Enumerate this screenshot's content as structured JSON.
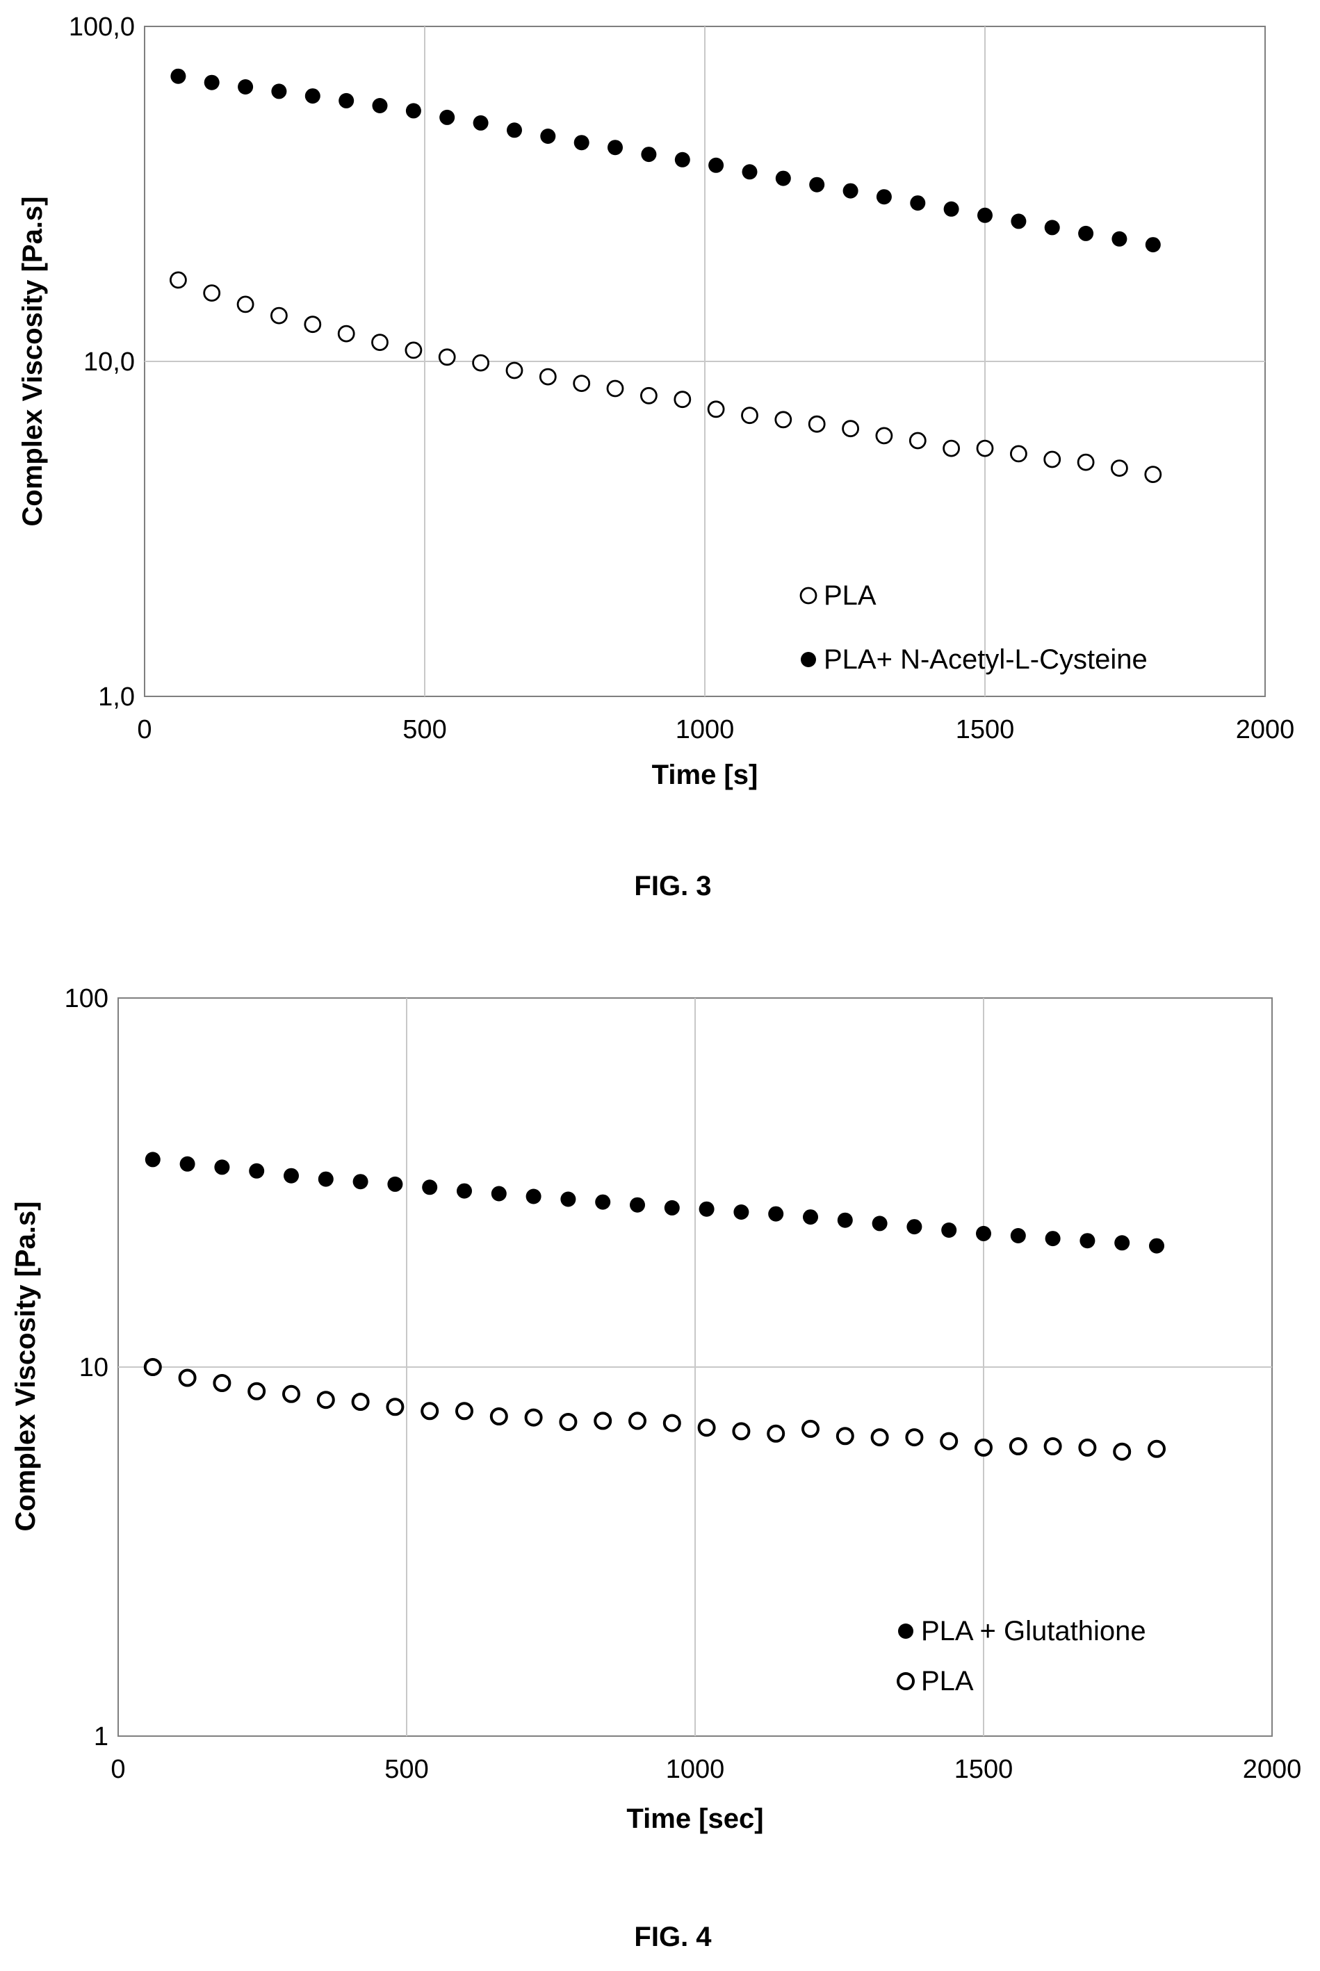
{
  "figures": [
    {
      "caption": "FIG. 3"
    },
    {
      "caption": "FIG. 4"
    }
  ],
  "chart_data": [
    {
      "type": "scatter",
      "title": "",
      "xlabel": "Time [s]",
      "ylabel": "Complex Viscosity [Pa.s]",
      "xlim": [
        0,
        2000
      ],
      "ylim": [
        1,
        100
      ],
      "yscale": "log",
      "x_ticks": [
        0,
        500,
        1000,
        1500,
        2000
      ],
      "x_tick_labels": [
        "0",
        "500",
        "1000",
        "1500",
        "2000"
      ],
      "y_ticks": [
        1,
        10,
        100
      ],
      "y_tick_labels": [
        "1,0",
        "10,0",
        "100,0"
      ],
      "grid": true,
      "legend_position": "bottom-right",
      "series": [
        {
          "name": "PLA",
          "marker": "open-circle",
          "x": [
            60,
            120,
            180,
            240,
            300,
            360,
            420,
            480,
            540,
            600,
            660,
            720,
            780,
            840,
            900,
            960,
            1020,
            1080,
            1140,
            1200,
            1260,
            1320,
            1380,
            1440,
            1500,
            1560,
            1620,
            1680,
            1740,
            1800
          ],
          "values": [
            17.5,
            16.0,
            14.8,
            13.7,
            12.9,
            12.1,
            11.4,
            10.8,
            10.3,
            9.9,
            9.4,
            9.0,
            8.6,
            8.3,
            7.9,
            7.7,
            7.2,
            6.9,
            6.7,
            6.5,
            6.3,
            6.0,
            5.8,
            5.5,
            5.5,
            5.3,
            5.1,
            5.0,
            4.8,
            4.6
          ]
        },
        {
          "name": "PLA+ N-Acetyl-L-Cysteine",
          "marker": "filled-circle",
          "x": [
            60,
            120,
            180,
            240,
            300,
            360,
            420,
            480,
            540,
            600,
            660,
            720,
            780,
            840,
            900,
            960,
            1020,
            1080,
            1140,
            1200,
            1260,
            1320,
            1380,
            1440,
            1500,
            1560,
            1620,
            1680,
            1740,
            1800
          ],
          "values": [
            71.0,
            68.0,
            66.0,
            64.0,
            62.0,
            60.0,
            58.0,
            56.0,
            53.5,
            51.5,
            49.0,
            47.0,
            45.0,
            43.5,
            41.5,
            40.0,
            38.5,
            36.8,
            35.2,
            33.7,
            32.3,
            31.0,
            29.7,
            28.5,
            27.3,
            26.2,
            25.1,
            24.1,
            23.2,
            22.3
          ]
        }
      ]
    },
    {
      "type": "scatter",
      "title": "",
      "xlabel": "Time [sec]",
      "ylabel": "Complex Viscosity [Pa.s]",
      "xlim": [
        0,
        2000
      ],
      "ylim": [
        1,
        100
      ],
      "yscale": "log",
      "x_ticks": [
        0,
        500,
        1000,
        1500,
        2000
      ],
      "x_tick_labels": [
        "0",
        "500",
        "1000",
        "1500",
        "2000"
      ],
      "y_ticks": [
        1,
        10,
        100
      ],
      "y_tick_labels": [
        "1",
        "10",
        "100"
      ],
      "grid": true,
      "legend_position": "bottom-right",
      "series": [
        {
          "name": "PLA + Glutathione",
          "marker": "filled-circle",
          "x": [
            60,
            120,
            180,
            240,
            300,
            360,
            420,
            480,
            540,
            600,
            660,
            720,
            780,
            840,
            900,
            960,
            1020,
            1080,
            1140,
            1200,
            1260,
            1320,
            1380,
            1440,
            1500,
            1560,
            1620,
            1680,
            1740,
            1800
          ],
          "values": [
            36.5,
            35.5,
            34.8,
            34.0,
            33.0,
            32.3,
            31.8,
            31.3,
            30.7,
            30.0,
            29.5,
            29.0,
            28.5,
            28.0,
            27.5,
            27.0,
            26.8,
            26.3,
            26.0,
            25.5,
            25.0,
            24.5,
            24.0,
            23.5,
            23.0,
            22.7,
            22.3,
            22.0,
            21.7,
            21.3
          ]
        },
        {
          "name": "PLA",
          "marker": "open-circle",
          "x": [
            60,
            120,
            180,
            240,
            300,
            360,
            420,
            480,
            540,
            600,
            660,
            720,
            780,
            840,
            900,
            960,
            1020,
            1080,
            1140,
            1200,
            1260,
            1320,
            1380,
            1440,
            1500,
            1560,
            1620,
            1680,
            1740,
            1800
          ],
          "values": [
            10.0,
            9.35,
            9.05,
            8.6,
            8.45,
            8.15,
            8.05,
            7.8,
            7.6,
            7.6,
            7.35,
            7.3,
            7.1,
            7.15,
            7.15,
            7.05,
            6.85,
            6.7,
            6.6,
            6.8,
            6.5,
            6.45,
            6.45,
            6.3,
            6.05,
            6.1,
            6.1,
            6.05,
            5.9,
            6.0
          ]
        }
      ]
    }
  ]
}
